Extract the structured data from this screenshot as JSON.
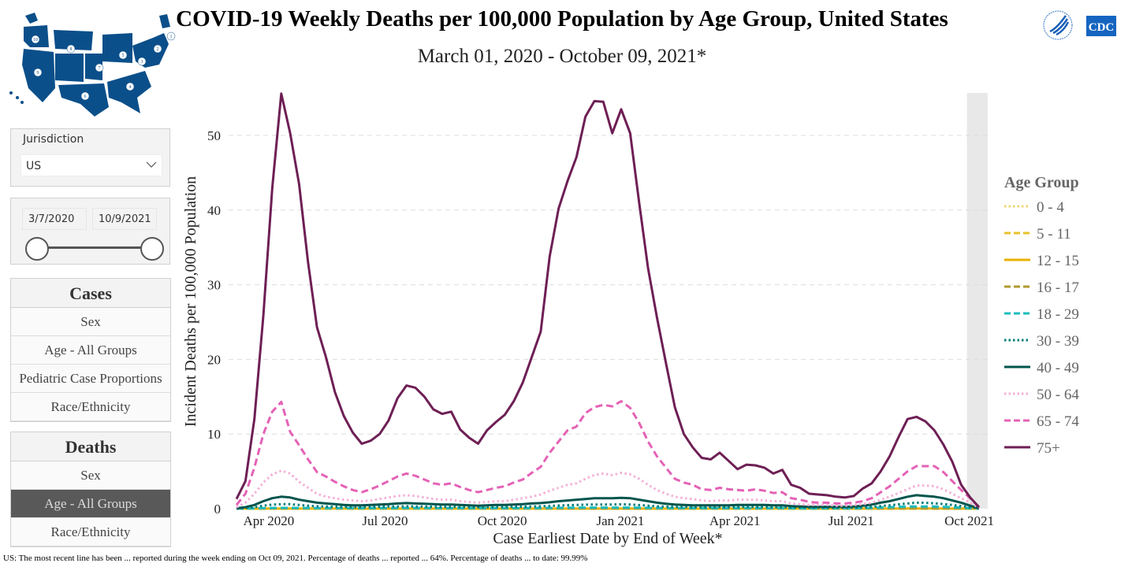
{
  "header": {
    "title": "COVID-19 Weekly Deaths per 100,000 Population by Age Group, United States",
    "subtitle": "March 01, 2020 - October 09, 2021*",
    "logo_text": "CDC"
  },
  "map": {
    "region_numbers": [
      "1",
      "2",
      "3",
      "4",
      "5",
      "6",
      "7",
      "8",
      "9",
      "10"
    ]
  },
  "filters": {
    "jurisdiction_label": "Jurisdiction",
    "jurisdiction_value": "US",
    "start_date": "3/7/2020",
    "end_date": "10/9/2021"
  },
  "nav": {
    "cases": {
      "title": "Cases",
      "items": [
        "Sex",
        "Age - All Groups",
        "Pediatric Case Proportions",
        "Race/Ethnicity"
      ]
    },
    "deaths": {
      "title": "Deaths",
      "items": [
        "Sex",
        "Age - All Groups",
        "Race/Ethnicity"
      ],
      "active_index": 1
    }
  },
  "footnote": "US: The most recent line has been ... reported during the week ending on Oct 09, 2021. Percentage of deaths ... reported ... 64%. Percentage of deaths ... to date: 99.99%",
  "chart_data": {
    "type": "line",
    "title": "COVID-19 Weekly Deaths per 100,000 Population by Age Group, United States",
    "xlabel": "Case Earliest Date by End of Week*",
    "ylabel": "Incident Deaths per 100,000 Population",
    "x_start": "2020-03-07",
    "x_step_days": 7,
    "x_count": 84,
    "x_ticks": [
      {
        "label": "Apr 2020",
        "week": 3.6
      },
      {
        "label": "Jul 2020",
        "week": 16.6
      },
      {
        "label": "Oct 2020",
        "week": 29.7
      },
      {
        "label": "Jan 2021",
        "week": 42.9
      },
      {
        "label": "Apr 2021",
        "week": 55.7
      },
      {
        "label": "Jul 2021",
        "week": 68.7
      },
      {
        "label": "Oct 2021",
        "week": 81.9
      }
    ],
    "ylim": [
      0,
      55.6
    ],
    "y_ticks": [
      0,
      10,
      20,
      30,
      40,
      50
    ],
    "grid": true,
    "shaded_incomplete_weeks_from": 81.9,
    "legend_title": "Age Group",
    "legend_position": "right",
    "series": [
      {
        "name": "0 - 4",
        "color": "#f0d770",
        "dash": "dotted",
        "values": [
          0,
          0.01,
          0.01,
          0.01,
          0.01,
          0.01,
          0.01,
          0.01,
          0.01,
          0.01,
          0.01,
          0.01,
          0.01,
          0.01,
          0.01,
          0.01,
          0.01,
          0.01,
          0.01,
          0.01,
          0.01,
          0.01,
          0.01,
          0.01,
          0.01,
          0.01,
          0.01,
          0.01,
          0.01,
          0.01,
          0.01,
          0.01,
          0.01,
          0.01,
          0.01,
          0.01,
          0.01,
          0.01,
          0.01,
          0.01,
          0.01,
          0.01,
          0.01,
          0.01,
          0.01,
          0.01,
          0.01,
          0.01,
          0.01,
          0.01,
          0.01,
          0.01,
          0.01,
          0.01,
          0.01,
          0.01,
          0.01,
          0.01,
          0.01,
          0.01,
          0.01,
          0.01,
          0.01,
          0.01,
          0.01,
          0.01,
          0.01,
          0.01,
          0.01,
          0.01,
          0.01,
          0.01,
          0.01,
          0.01,
          0.01,
          0.01,
          0.01,
          0.01,
          0.01,
          0.01,
          0.01,
          0.01,
          0.01,
          0
        ]
      },
      {
        "name": "5 - 11",
        "color": "#e8c22a",
        "dash": "dashed",
        "values": [
          0,
          0.005,
          0.005,
          0.005,
          0.005,
          0.005,
          0.005,
          0.005,
          0.005,
          0.005,
          0.005,
          0.005,
          0.005,
          0.005,
          0.005,
          0.005,
          0.005,
          0.005,
          0.005,
          0.005,
          0.005,
          0.005,
          0.005,
          0.005,
          0.005,
          0.005,
          0.005,
          0.005,
          0.005,
          0.005,
          0.005,
          0.005,
          0.005,
          0.005,
          0.005,
          0.005,
          0.005,
          0.005,
          0.005,
          0.005,
          0.005,
          0.005,
          0.005,
          0.005,
          0.005,
          0.005,
          0.005,
          0.005,
          0.005,
          0.005,
          0.005,
          0.005,
          0.005,
          0.005,
          0.005,
          0.005,
          0.005,
          0.005,
          0.005,
          0.005,
          0.005,
          0.005,
          0.005,
          0.005,
          0.005,
          0.005,
          0.005,
          0.005,
          0.005,
          0.005,
          0.005,
          0.005,
          0.005,
          0.005,
          0.005,
          0.005,
          0.005,
          0.005,
          0.005,
          0.005,
          0.005,
          0.005,
          0.005,
          0
        ]
      },
      {
        "name": "12 - 15",
        "color": "#e8b000",
        "dash": "solid",
        "values": [
          0,
          0.01,
          0.01,
          0.01,
          0.01,
          0.01,
          0.01,
          0.01,
          0.01,
          0.01,
          0.01,
          0.01,
          0.01,
          0.01,
          0.01,
          0.01,
          0.01,
          0.01,
          0.01,
          0.01,
          0.01,
          0.01,
          0.01,
          0.01,
          0.01,
          0.01,
          0.01,
          0.01,
          0.01,
          0.01,
          0.01,
          0.01,
          0.01,
          0.01,
          0.01,
          0.01,
          0.01,
          0.01,
          0.01,
          0.01,
          0.01,
          0.01,
          0.01,
          0.01,
          0.01,
          0.01,
          0.01,
          0.01,
          0.01,
          0.01,
          0.01,
          0.01,
          0.01,
          0.01,
          0.01,
          0.01,
          0.01,
          0.01,
          0.01,
          0.01,
          0.01,
          0.01,
          0.01,
          0.01,
          0.01,
          0.01,
          0.01,
          0.01,
          0.01,
          0.01,
          0.01,
          0.01,
          0.01,
          0.01,
          0.02,
          0.02,
          0.02,
          0.02,
          0.02,
          0.02,
          0.01,
          0.01,
          0.01,
          0
        ]
      },
      {
        "name": "16 - 17",
        "color": "#b09a30",
        "dash": "dashed",
        "values": [
          0,
          0.01,
          0.01,
          0.02,
          0.02,
          0.02,
          0.02,
          0.02,
          0.02,
          0.02,
          0.02,
          0.02,
          0.02,
          0.02,
          0.02,
          0.02,
          0.02,
          0.02,
          0.02,
          0.02,
          0.02,
          0.02,
          0.02,
          0.02,
          0.02,
          0.02,
          0.02,
          0.02,
          0.02,
          0.02,
          0.02,
          0.02,
          0.02,
          0.02,
          0.02,
          0.02,
          0.02,
          0.02,
          0.02,
          0.02,
          0.02,
          0.02,
          0.02,
          0.02,
          0.02,
          0.02,
          0.02,
          0.02,
          0.02,
          0.02,
          0.02,
          0.02,
          0.02,
          0.02,
          0.02,
          0.02,
          0.02,
          0.02,
          0.02,
          0.02,
          0.02,
          0.02,
          0.02,
          0.02,
          0.02,
          0.02,
          0.02,
          0.02,
          0.02,
          0.02,
          0.02,
          0.02,
          0.03,
          0.03,
          0.04,
          0.04,
          0.04,
          0.04,
          0.04,
          0.03,
          0.03,
          0.02,
          0.01,
          0
        ]
      },
      {
        "name": "18 - 29",
        "color": "#1cbcbc",
        "dash": "dashed",
        "values": [
          0.01,
          0.02,
          0.04,
          0.07,
          0.1,
          0.11,
          0.11,
          0.1,
          0.09,
          0.08,
          0.07,
          0.07,
          0.07,
          0.07,
          0.07,
          0.08,
          0.09,
          0.1,
          0.1,
          0.1,
          0.1,
          0.09,
          0.08,
          0.08,
          0.08,
          0.07,
          0.07,
          0.07,
          0.07,
          0.07,
          0.07,
          0.08,
          0.08,
          0.09,
          0.1,
          0.11,
          0.12,
          0.13,
          0.14,
          0.15,
          0.15,
          0.15,
          0.15,
          0.15,
          0.15,
          0.13,
          0.11,
          0.1,
          0.09,
          0.08,
          0.07,
          0.07,
          0.07,
          0.07,
          0.07,
          0.07,
          0.07,
          0.07,
          0.07,
          0.07,
          0.07,
          0.07,
          0.06,
          0.05,
          0.05,
          0.05,
          0.05,
          0.05,
          0.05,
          0.06,
          0.08,
          0.11,
          0.15,
          0.2,
          0.24,
          0.28,
          0.3,
          0.3,
          0.28,
          0.25,
          0.2,
          0.14,
          0.07,
          0.01
        ]
      },
      {
        "name": "30 - 39",
        "color": "#007d7a",
        "dash": "dotted",
        "values": [
          0.02,
          0.08,
          0.2,
          0.4,
          0.55,
          0.6,
          0.6,
          0.5,
          0.4,
          0.32,
          0.28,
          0.25,
          0.22,
          0.2,
          0.2,
          0.22,
          0.25,
          0.28,
          0.3,
          0.32,
          0.3,
          0.28,
          0.25,
          0.24,
          0.24,
          0.22,
          0.2,
          0.18,
          0.2,
          0.22,
          0.22,
          0.24,
          0.26,
          0.3,
          0.32,
          0.36,
          0.42,
          0.46,
          0.5,
          0.54,
          0.56,
          0.56,
          0.56,
          0.58,
          0.56,
          0.48,
          0.4,
          0.32,
          0.27,
          0.23,
          0.21,
          0.2,
          0.2,
          0.2,
          0.2,
          0.2,
          0.22,
          0.22,
          0.22,
          0.22,
          0.2,
          0.2,
          0.16,
          0.14,
          0.12,
          0.12,
          0.12,
          0.12,
          0.12,
          0.14,
          0.18,
          0.25,
          0.35,
          0.45,
          0.58,
          0.7,
          0.8,
          0.78,
          0.72,
          0.62,
          0.5,
          0.35,
          0.18,
          0.02
        ]
      },
      {
        "name": "40 - 49",
        "color": "#00554d",
        "dash": "solid",
        "values": [
          0.05,
          0.2,
          0.5,
          1.0,
          1.4,
          1.6,
          1.5,
          1.2,
          1.0,
          0.8,
          0.7,
          0.6,
          0.5,
          0.45,
          0.45,
          0.5,
          0.55,
          0.6,
          0.7,
          0.75,
          0.7,
          0.65,
          0.6,
          0.55,
          0.55,
          0.5,
          0.45,
          0.4,
          0.45,
          0.5,
          0.5,
          0.55,
          0.6,
          0.7,
          0.75,
          0.85,
          1.0,
          1.1,
          1.2,
          1.3,
          1.4,
          1.4,
          1.4,
          1.45,
          1.4,
          1.2,
          1.0,
          0.8,
          0.65,
          0.55,
          0.5,
          0.45,
          0.45,
          0.45,
          0.45,
          0.45,
          0.5,
          0.5,
          0.5,
          0.5,
          0.45,
          0.45,
          0.35,
          0.3,
          0.25,
          0.25,
          0.25,
          0.25,
          0.25,
          0.3,
          0.4,
          0.55,
          0.8,
          1.0,
          1.3,
          1.6,
          1.8,
          1.7,
          1.6,
          1.4,
          1.1,
          0.8,
          0.4,
          0.05
        ]
      },
      {
        "name": "50 - 64",
        "color": "#f4b0d8",
        "dash": "dotted",
        "values": [
          0.2,
          0.8,
          2,
          3.5,
          4.6,
          5.1,
          4.7,
          3.6,
          2.8,
          2,
          1.6,
          1.4,
          1.2,
          1.1,
          1,
          1.1,
          1.3,
          1.5,
          1.7,
          1.8,
          1.7,
          1.5,
          1.3,
          1.2,
          1.2,
          1,
          0.9,
          0.8,
          0.9,
          1,
          1,
          1.2,
          1.4,
          1.6,
          1.9,
          2.4,
          2.8,
          3.2,
          3.4,
          4,
          4.5,
          4.7,
          4.5,
          4.8,
          4.6,
          4,
          3.2,
          2.5,
          2,
          1.6,
          1.4,
          1.3,
          1.1,
          1,
          1.1,
          1.1,
          1.2,
          1.2,
          1.2,
          1.1,
          1,
          1,
          0.7,
          0.6,
          0.5,
          0.5,
          0.5,
          0.4,
          0.4,
          0.5,
          0.6,
          0.8,
          1.2,
          1.6,
          2.1,
          2.6,
          3.1,
          3.1,
          3.0,
          2.6,
          2.0,
          1.4,
          0.8,
          0.1
        ]
      },
      {
        "name": "65 - 74",
        "color": "#e462b6",
        "dash": "dashed",
        "values": [
          0.5,
          2,
          5.5,
          10,
          13,
          14.3,
          10.3,
          8.5,
          6.6,
          4.9,
          4.3,
          3.6,
          3,
          2.5,
          2.2,
          2.6,
          3.1,
          3.7,
          4.3,
          4.7,
          4.4,
          3.9,
          3.4,
          3.2,
          3.4,
          2.9,
          2.5,
          2.2,
          2.5,
          2.8,
          3,
          3.5,
          3.9,
          4.8,
          5.6,
          7.5,
          9,
          10.5,
          11,
          12.8,
          13.6,
          13.9,
          13.7,
          14.4,
          13.5,
          11.5,
          9,
          7,
          5.5,
          4,
          3.5,
          3.2,
          2.6,
          2.5,
          2.8,
          2.6,
          2.5,
          2.4,
          2.6,
          2.4,
          2.1,
          2.2,
          1.4,
          1.2,
          0.9,
          0.8,
          0.8,
          0.7,
          0.7,
          0.8,
          1.0,
          1.4,
          2.2,
          3,
          4,
          5,
          5.7,
          5.7,
          5.7,
          4.9,
          3.7,
          2.5,
          1.4,
          0.2
        ]
      },
      {
        "name": "75+",
        "color": "#6e1f55",
        "dash": "solid",
        "values": [
          1.3,
          3.7,
          12,
          25.9,
          43,
          55.6,
          50.3,
          43.5,
          33,
          24.3,
          20.3,
          15.6,
          12.4,
          10.2,
          8.7,
          9.1,
          10,
          11.8,
          14.8,
          16.5,
          16.2,
          15,
          13.3,
          12.7,
          13,
          10.6,
          9.5,
          8.7,
          10.5,
          11.6,
          12.6,
          14.4,
          16.9,
          20.3,
          23.7,
          33.8,
          40.2,
          43.9,
          47.1,
          52.5,
          54.6,
          54.5,
          50.3,
          53.5,
          50.3,
          41,
          32.2,
          25.6,
          19.5,
          13.6,
          10,
          8.2,
          6.8,
          6.6,
          7.5,
          6.4,
          5.3,
          5.9,
          5.8,
          5.5,
          4.7,
          5.2,
          3.2,
          2.8,
          2.0,
          1.9,
          1.8,
          1.6,
          1.5,
          1.7,
          2.7,
          3.4,
          5,
          7,
          9.6,
          12,
          12.3,
          11.7,
          10.5,
          8.6,
          6.3,
          3.2,
          1.5,
          0.2
        ]
      }
    ]
  }
}
